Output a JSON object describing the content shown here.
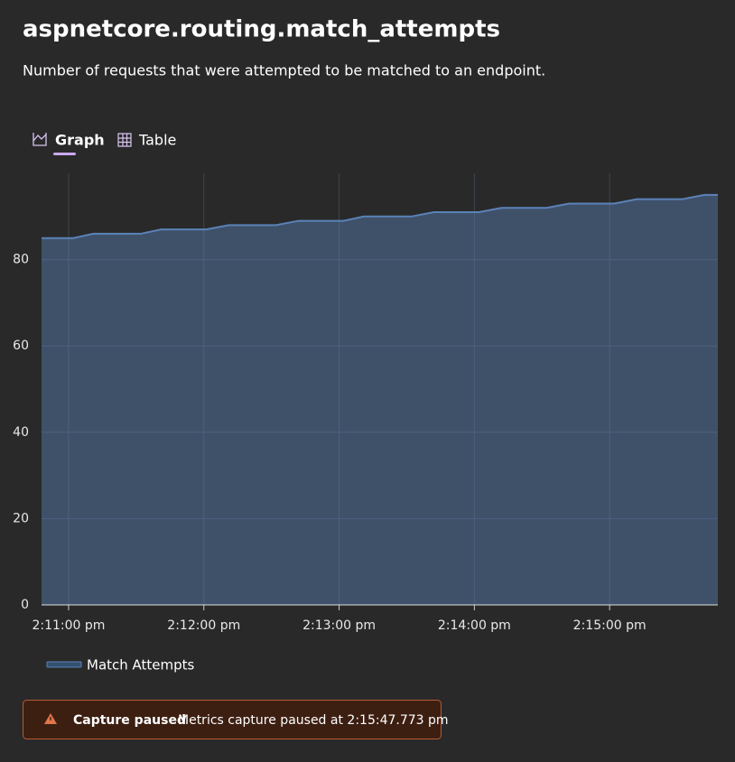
{
  "header": {
    "title": "aspnetcore.routing.match_attempts",
    "subtitle": "Number of requests that were attempted to be matched to an endpoint."
  },
  "tabs": [
    "Graph",
    "Table"
  ],
  "chart_data": {
    "type": "area",
    "x": [
      "2:10:48 pm",
      "2:11:02 pm",
      "2:11:11 pm",
      "2:11:32 pm",
      "2:11:41 pm",
      "2:12:01 pm",
      "2:12:11 pm",
      "2:12:32 pm",
      "2:12:42 pm",
      "2:13:02 pm",
      "2:13:11 pm",
      "2:13:32 pm",
      "2:13:42 pm",
      "2:14:02 pm",
      "2:14:12 pm",
      "2:14:32 pm",
      "2:14:42 pm",
      "2:15:02 pm",
      "2:15:12 pm",
      "2:15:32 pm",
      "2:15:42 pm",
      "2:15:48 pm"
    ],
    "series": [
      {
        "name": "Match Attempts",
        "color": "#5b82b8",
        "values": [
          85,
          85,
          86,
          86,
          87,
          87,
          88,
          88,
          89,
          89,
          90,
          90,
          91,
          91,
          92,
          92,
          93,
          93,
          94,
          94,
          95,
          95
        ]
      }
    ],
    "xlim": [
      "2:10:48 pm",
      "2:15:48 pm"
    ],
    "xticks": [
      "2:11:00 pm",
      "2:12:00 pm",
      "2:13:00 pm",
      "2:14:00 pm",
      "2:15:00 pm"
    ],
    "ylim": [
      0,
      100
    ],
    "yticks": [
      0,
      20,
      40,
      60,
      80
    ],
    "grid": true
  },
  "alert": {
    "title": "Capture paused",
    "message": "Metrics capture paused at 2:15:47.773 pm"
  }
}
